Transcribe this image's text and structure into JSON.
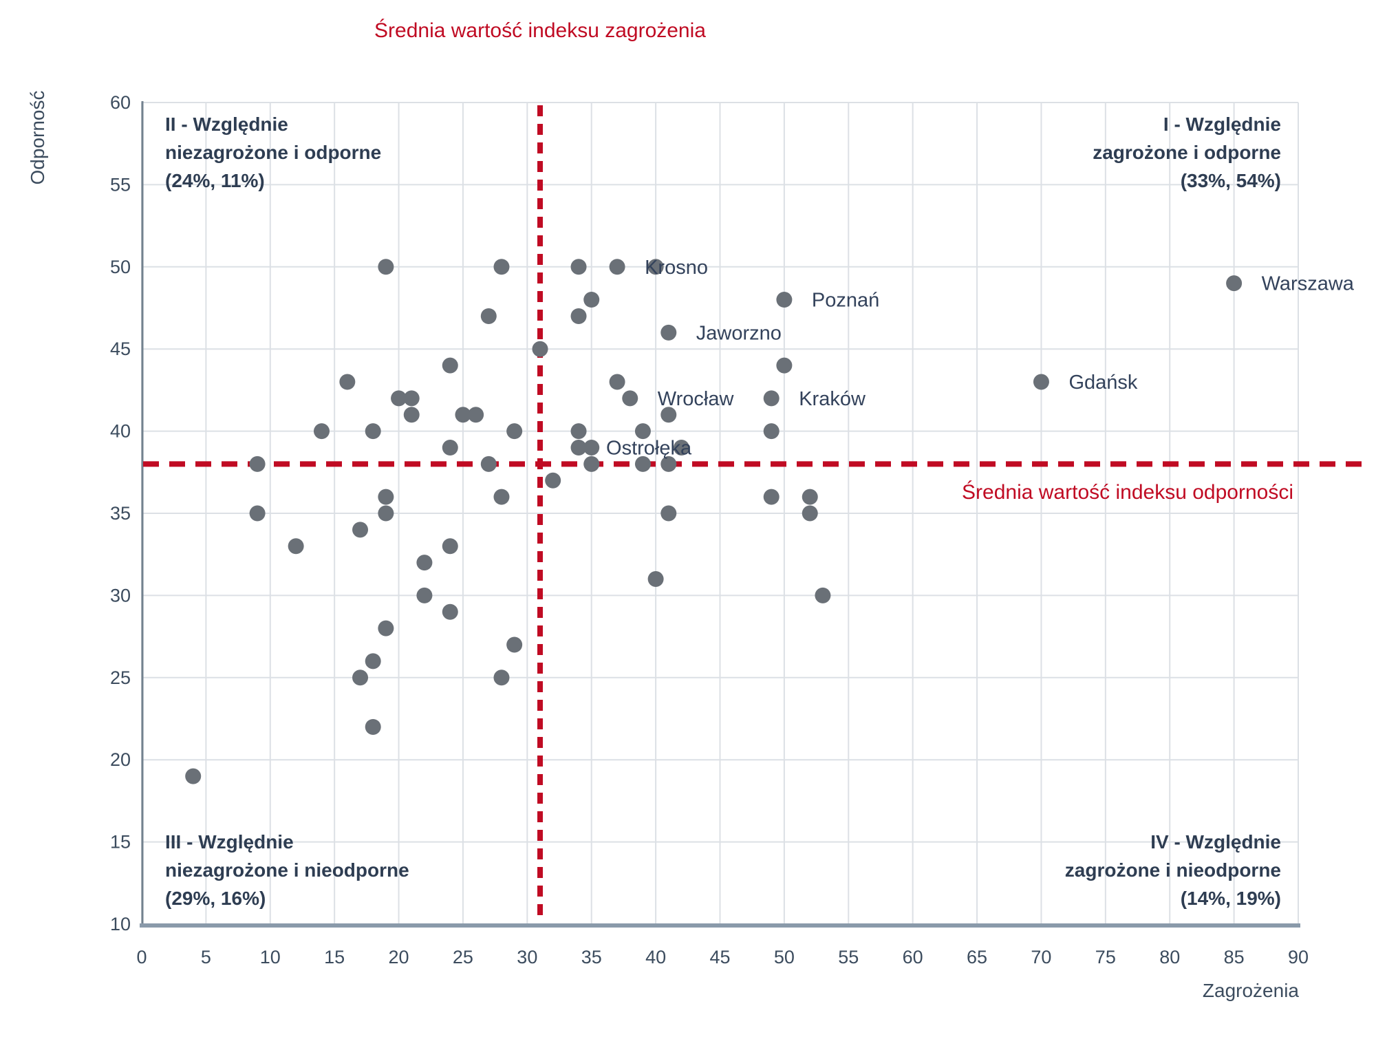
{
  "chart_data": {
    "type": "scatter",
    "title": "",
    "xlabel": "Zagrożenia",
    "ylabel": "Odporność",
    "xlim": [
      0,
      90
    ],
    "xtick_step": 5,
    "ylim": [
      10,
      60
    ],
    "ytick_step": 5,
    "grid": true,
    "legend": "none",
    "mean_lines": {
      "vertical": {
        "x": 31,
        "label_lines": [
          "Średnia wartość",
          "indeksu zagrożenia"
        ]
      },
      "horizontal": {
        "y": 38,
        "label_lines": [
          "Średnia wartość",
          "indeksu odporności"
        ]
      }
    },
    "quadrant_labels": [
      {
        "id": "I",
        "position": "top-right",
        "lines": [
          "I - Względnie",
          "zagrożone i odporne",
          "(33%, 54%)"
        ]
      },
      {
        "id": "II",
        "position": "top-left",
        "lines": [
          "II - Względnie",
          "niezagrożone i odporne",
          "(24%, 11%)"
        ]
      },
      {
        "id": "III",
        "position": "bottom-left",
        "lines": [
          "III - Względnie",
          "niezagrożone i nieodporne",
          "(29%, 16%)"
        ]
      },
      {
        "id": "IV",
        "position": "bottom-right",
        "lines": [
          "IV - Względnie",
          "zagrożone i nieodporne",
          "(14%, 19%)"
        ]
      }
    ],
    "labeled_points": [
      {
        "name": "Krosno",
        "x": 37,
        "y": 50
      },
      {
        "name": "Warszawa",
        "x": 85,
        "y": 49
      },
      {
        "name": "Poznań",
        "x": 50,
        "y": 48
      },
      {
        "name": "Jaworzno",
        "x": 41,
        "y": 46
      },
      {
        "name": "Gdańsk",
        "x": 70,
        "y": 43
      },
      {
        "name": "Wrocław",
        "x": 38,
        "y": 42
      },
      {
        "name": "Kraków",
        "x": 49,
        "y": 42
      },
      {
        "name": "Ostrołęka",
        "x": 34,
        "y": 39
      }
    ],
    "points": [
      [
        19,
        50
      ],
      [
        28,
        50
      ],
      [
        34,
        50
      ],
      [
        40,
        50
      ],
      [
        35,
        48
      ],
      [
        27,
        47
      ],
      [
        34,
        47
      ],
      [
        31,
        45
      ],
      [
        24,
        44
      ],
      [
        50,
        44
      ],
      [
        16,
        43
      ],
      [
        37,
        43
      ],
      [
        20,
        42
      ],
      [
        21,
        42
      ],
      [
        21,
        41
      ],
      [
        25,
        41
      ],
      [
        26,
        41
      ],
      [
        41,
        41
      ],
      [
        14,
        40
      ],
      [
        18,
        40
      ],
      [
        29,
        40
      ],
      [
        34,
        40
      ],
      [
        39,
        40
      ],
      [
        49,
        40
      ],
      [
        24,
        39
      ],
      [
        35,
        39
      ],
      [
        42,
        39
      ],
      [
        9,
        38
      ],
      [
        27,
        38
      ],
      [
        35,
        38
      ],
      [
        39,
        38
      ],
      [
        41,
        38
      ],
      [
        32,
        37
      ],
      [
        19,
        36
      ],
      [
        28,
        36
      ],
      [
        49,
        36
      ],
      [
        52,
        36
      ],
      [
        9,
        35
      ],
      [
        19,
        35
      ],
      [
        41,
        35
      ],
      [
        52,
        35
      ],
      [
        17,
        34
      ],
      [
        12,
        33
      ],
      [
        24,
        33
      ],
      [
        22,
        32
      ],
      [
        40,
        31
      ],
      [
        22,
        30
      ],
      [
        53,
        30
      ],
      [
        24,
        29
      ],
      [
        19,
        28
      ],
      [
        29,
        27
      ],
      [
        18,
        26
      ],
      [
        17,
        25
      ],
      [
        28,
        25
      ],
      [
        18,
        22
      ],
      [
        4,
        19
      ]
    ]
  },
  "colors": {
    "dot": "#6A7077",
    "grid": "#DCE0E5",
    "axis_left": "#73828F",
    "axis_bottom": "#8A9AAA",
    "tick_text": "#3C4C5E",
    "annotation_text": "#2E3D52",
    "city_text": "#33425B",
    "red": "#C00B23"
  }
}
